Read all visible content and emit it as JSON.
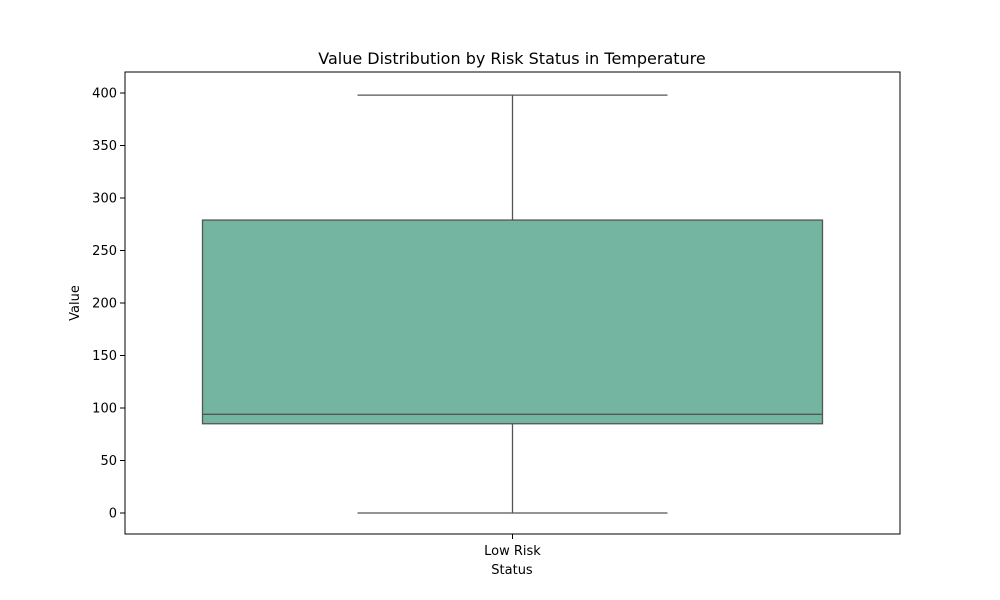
{
  "chart_data": {
    "type": "box",
    "title": "Value Distribution by Risk Status in Temperature",
    "xlabel": "Status",
    "ylabel": "Value",
    "categories": [
      "Low Risk"
    ],
    "boxes": [
      {
        "category": "Low Risk",
        "whisker_low": 0,
        "q1": 85,
        "median": 94,
        "q3": 279,
        "whisker_high": 398
      }
    ],
    "ylim": [
      -20,
      420
    ],
    "yticks": [
      0,
      50,
      100,
      150,
      200,
      250,
      300,
      350,
      400
    ],
    "ytick_labels": [
      "0",
      "50",
      "100",
      "150",
      "200",
      "250",
      "300",
      "350",
      "400"
    ],
    "box_color": "#73b5a1",
    "line_color": "#555555",
    "grid": false,
    "legend": "none"
  }
}
